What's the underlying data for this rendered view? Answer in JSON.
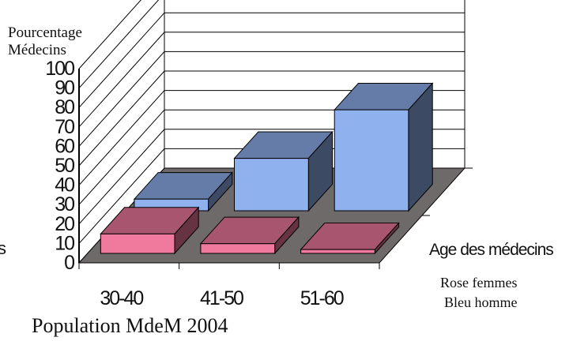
{
  "chart_data": {
    "type": "bar",
    "title": "Population MdeM 2004",
    "ylabel_line1": "Pourcentage",
    "ylabel_line2": "Médecins",
    "xlabel": "Age des médecins",
    "side_label": "s",
    "categories": [
      "30-40",
      "41-50",
      "51-60"
    ],
    "series": [
      {
        "name": "Rose femmes",
        "color": "#f07a9e",
        "values": [
          10,
          5,
          2
        ]
      },
      {
        "name": "Bleu homme",
        "color": "#8fb1ee",
        "values": [
          6,
          27,
          52
        ]
      }
    ],
    "ylim": [
      0,
      100
    ],
    "yticks": [
      0,
      10,
      20,
      30,
      40,
      50,
      60,
      70,
      80,
      90,
      100
    ],
    "grid": true,
    "legend": {
      "placement": "bottom-right",
      "lines": [
        "Rose femmes",
        "Bleu homme"
      ]
    }
  }
}
